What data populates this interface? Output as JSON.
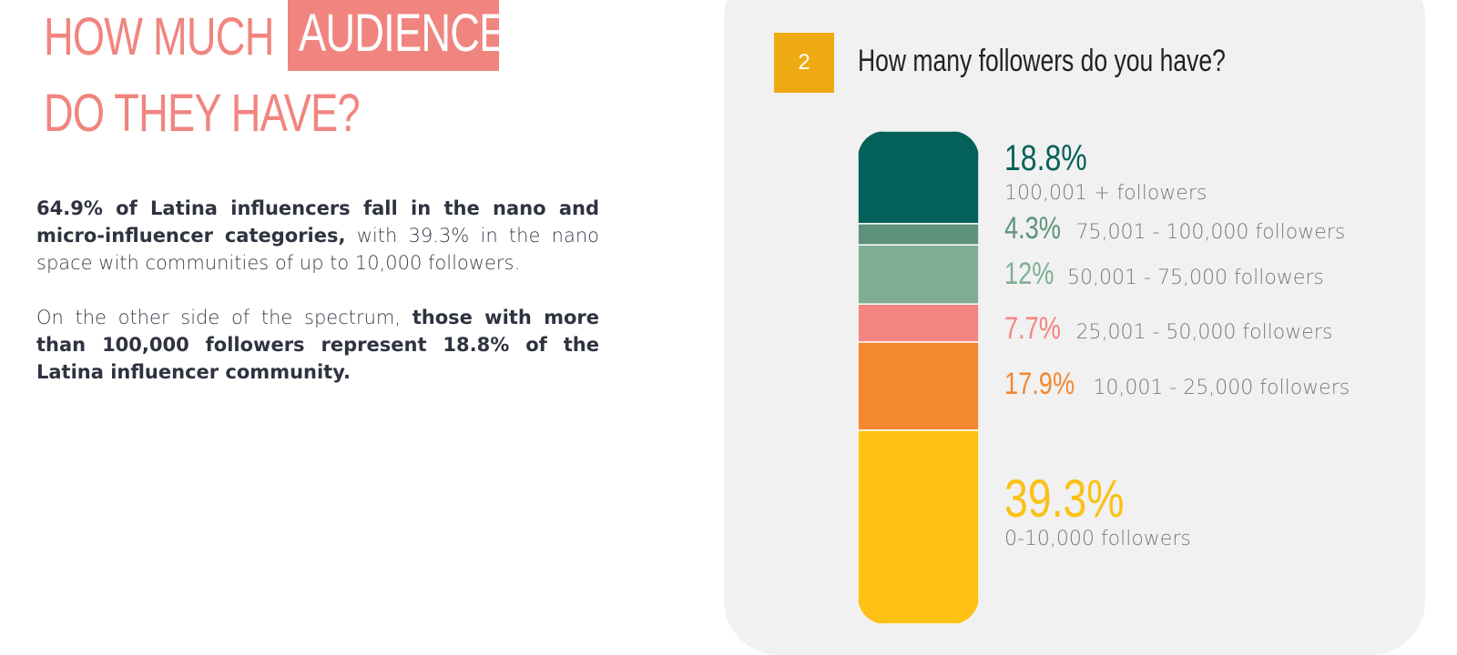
{
  "headline": {
    "line1": "HOW MUCH",
    "highlight": "AUDIENCE",
    "line2": "DO THEY HAVE?"
  },
  "paragraph1": {
    "bold": "64.9% of Latina influencers fall in the nano and micro-influencer categories,",
    "normal": " with 39.3% in the nano space with communities of up to 10,000 followers."
  },
  "paragraph2": {
    "normal": "On the other side of the spectrum, ",
    "bold": "those with more than 100,000 followers represent 18.8% of the Latina influencer community."
  },
  "question": {
    "number": "2",
    "text": "How many followers do you have?"
  },
  "chart_data": {
    "type": "bar",
    "stacked": true,
    "orientation": "vertical",
    "categories": [
      "100,001 + followers",
      "75,001 - 100,000 followers",
      "50,001 - 75,000 followers",
      "25,001 - 50,000 followers",
      "10,001 - 25,000 followers",
      "0-10,000 followers"
    ],
    "values": [
      18.8,
      4.3,
      12,
      7.7,
      17.9,
      39.3
    ],
    "labels": [
      "18.8%",
      "4.3%",
      "12%",
      "7.7%",
      "17.9%",
      "39.3%"
    ],
    "colors": [
      "#04615a",
      "#5e927a",
      "#7fae95",
      "#f4847f",
      "#f38830",
      "#fcc114"
    ],
    "title": "How many followers do you have?"
  },
  "colors": {
    "accent": "#f0857f",
    "badge": "#eeaa12",
    "panel": "#f1f1f1"
  }
}
